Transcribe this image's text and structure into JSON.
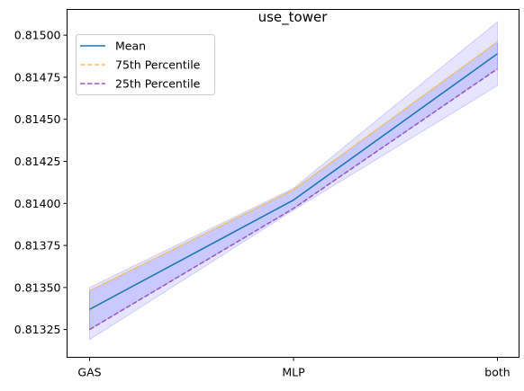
{
  "chart_data": {
    "type": "line",
    "title": "use_tower",
    "xlabel": "",
    "ylabel": "",
    "categories": [
      "GAS",
      "MLP",
      "both"
    ],
    "ylim": [
      0.813085,
      0.815153
    ],
    "yticks": [
      0.81325,
      0.8135,
      0.81375,
      0.814,
      0.81425,
      0.8145,
      0.81475,
      0.815
    ],
    "ytick_labels": [
      "0.81325",
      "0.81350",
      "0.81375",
      "0.81400",
      "0.81425",
      "0.81450",
      "0.81475",
      "0.81500"
    ],
    "series": [
      {
        "name": "Mean",
        "values": [
          0.81337,
          0.81402,
          0.81489
        ],
        "color": "#1f77b4",
        "style": "solid"
      },
      {
        "name": "75th Percentile",
        "values": [
          0.81348,
          0.81408,
          0.81496
        ],
        "color": "#f5c26b",
        "style": "dashed"
      },
      {
        "name": "25th Percentile",
        "values": [
          0.81325,
          0.81397,
          0.8148
        ],
        "color": "#9b59c8",
        "style": "dashed"
      }
    ],
    "bands": [
      {
        "lower": [
          0.81319,
          0.81396,
          0.8147
        ],
        "upper": [
          0.8135,
          0.81409,
          0.81508
        ],
        "color": "#0000ff",
        "opacity": 0.1
      },
      {
        "lower": [
          0.81325,
          0.81397,
          0.8148
        ],
        "upper": [
          0.81348,
          0.81408,
          0.81496
        ],
        "color": "#0000ff",
        "opacity": 0.12
      }
    ],
    "legend": {
      "placement": "top-left"
    },
    "grid": false
  }
}
